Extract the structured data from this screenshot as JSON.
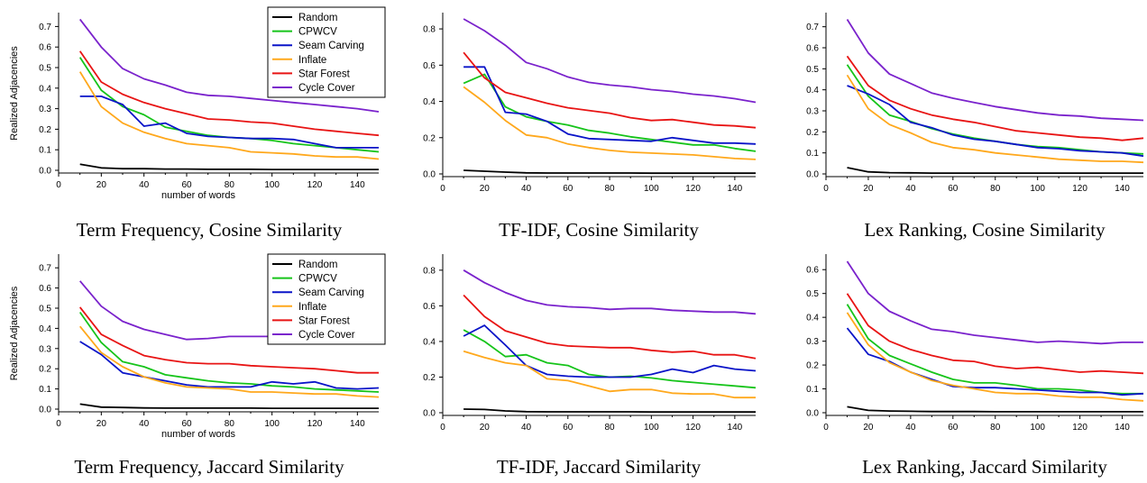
{
  "figure": {
    "series_colors": {
      "Random": "#000000",
      "CPWCV": "#16c41a",
      "Seam Carving": "#0a14c8",
      "Inflate": "#ffa81c",
      "Star Forest": "#e81414",
      "Cycle Cover": "#7a22cc"
    }
  },
  "chart_data": [
    {
      "type": "line",
      "caption": "Term Frequency, Cosine Similarity",
      "xlabel": "number of words",
      "ylabel": "Realized Adjacencies",
      "xlim": [
        0,
        150
      ],
      "ylim": [
        0,
        0.75
      ],
      "xticks": [
        0,
        20,
        40,
        60,
        80,
        100,
        120,
        140
      ],
      "yticks": [
        0.0,
        0.1,
        0.2,
        0.3,
        0.4,
        0.5,
        0.6,
        0.7
      ],
      "ytick_labels": [
        "0.0",
        "0.1",
        "0.2",
        "0.3",
        "0.4",
        "0.5",
        "0.6",
        "0.7"
      ],
      "legend": "top-right",
      "x": [
        10,
        20,
        30,
        40,
        50,
        60,
        70,
        80,
        90,
        100,
        110,
        120,
        130,
        140,
        150
      ],
      "series": [
        {
          "name": "Random",
          "values": [
            0.03,
            0.012,
            0.008,
            0.008,
            0.006,
            0.006,
            0.005,
            0.005,
            0.005,
            0.004,
            0.004,
            0.004,
            0.004,
            0.004,
            0.004
          ]
        },
        {
          "name": "CPWCV",
          "values": [
            0.55,
            0.39,
            0.31,
            0.27,
            0.21,
            0.19,
            0.17,
            0.16,
            0.155,
            0.145,
            0.13,
            0.12,
            0.11,
            0.1,
            0.09
          ]
        },
        {
          "name": "Seam Carving",
          "values": [
            0.36,
            0.36,
            0.32,
            0.215,
            0.23,
            0.18,
            0.165,
            0.16,
            0.155,
            0.155,
            0.15,
            0.13,
            0.11,
            0.11,
            0.11
          ]
        },
        {
          "name": "Inflate",
          "values": [
            0.48,
            0.31,
            0.23,
            0.185,
            0.155,
            0.13,
            0.12,
            0.11,
            0.09,
            0.085,
            0.08,
            0.07,
            0.065,
            0.065,
            0.055
          ]
        },
        {
          "name": "Star Forest",
          "values": [
            0.58,
            0.43,
            0.37,
            0.33,
            0.3,
            0.275,
            0.25,
            0.245,
            0.235,
            0.23,
            0.215,
            0.2,
            0.19,
            0.18,
            0.17
          ]
        },
        {
          "name": "Cycle Cover",
          "values": [
            0.735,
            0.6,
            0.495,
            0.445,
            0.415,
            0.38,
            0.365,
            0.36,
            0.35,
            0.34,
            0.33,
            0.32,
            0.31,
            0.3,
            0.285
          ]
        }
      ]
    },
    {
      "type": "line",
      "caption": "TF-IDF, Cosine Similarity",
      "xlabel": "",
      "ylabel": "",
      "xlim": [
        0,
        150
      ],
      "ylim": [
        0,
        0.87
      ],
      "xticks": [
        0,
        20,
        40,
        60,
        80,
        100,
        120,
        140
      ],
      "yticks": [
        0.0,
        0.2,
        0.4,
        0.6,
        0.8
      ],
      "ytick_labels": [
        "0.0",
        "0.2",
        "0.4",
        "0.6",
        "0.8"
      ],
      "x": [
        10,
        20,
        30,
        40,
        50,
        60,
        70,
        80,
        90,
        100,
        110,
        120,
        130,
        140,
        150
      ],
      "series": [
        {
          "name": "Random",
          "values": [
            0.02,
            0.015,
            0.01,
            0.006,
            0.005,
            0.005,
            0.005,
            0.005,
            0.005,
            0.004,
            0.004,
            0.004,
            0.004,
            0.004,
            0.004
          ]
        },
        {
          "name": "CPWCV",
          "values": [
            0.5,
            0.55,
            0.37,
            0.315,
            0.29,
            0.27,
            0.24,
            0.225,
            0.205,
            0.19,
            0.175,
            0.16,
            0.16,
            0.14,
            0.125
          ]
        },
        {
          "name": "Seam Carving",
          "values": [
            0.59,
            0.59,
            0.34,
            0.33,
            0.29,
            0.22,
            0.195,
            0.19,
            0.185,
            0.18,
            0.2,
            0.185,
            0.17,
            0.17,
            0.165
          ]
        },
        {
          "name": "Inflate",
          "values": [
            0.48,
            0.395,
            0.295,
            0.215,
            0.2,
            0.165,
            0.145,
            0.13,
            0.12,
            0.115,
            0.11,
            0.105,
            0.095,
            0.085,
            0.08
          ]
        },
        {
          "name": "Star Forest",
          "values": [
            0.67,
            0.53,
            0.45,
            0.42,
            0.39,
            0.365,
            0.35,
            0.335,
            0.31,
            0.295,
            0.3,
            0.285,
            0.27,
            0.265,
            0.255
          ]
        },
        {
          "name": "Cycle Cover",
          "values": [
            0.855,
            0.79,
            0.71,
            0.615,
            0.58,
            0.535,
            0.505,
            0.49,
            0.48,
            0.465,
            0.455,
            0.44,
            0.43,
            0.415,
            0.395
          ]
        }
      ]
    },
    {
      "type": "line",
      "caption": "Lex Ranking, Cosine Similarity",
      "xlabel": "",
      "ylabel": "",
      "xlim": [
        0,
        150
      ],
      "ylim": [
        0,
        0.75
      ],
      "xticks": [
        0,
        20,
        40,
        60,
        80,
        100,
        120,
        140
      ],
      "yticks": [
        0.0,
        0.1,
        0.2,
        0.3,
        0.4,
        0.5,
        0.6,
        0.7
      ],
      "ytick_labels": [
        "0.0",
        "0.1",
        "0.2",
        "0.3",
        "0.4",
        "0.5",
        "0.6",
        "0.7"
      ],
      "x": [
        10,
        20,
        30,
        40,
        50,
        60,
        70,
        80,
        90,
        100,
        110,
        120,
        130,
        140,
        150
      ],
      "series": [
        {
          "name": "Random",
          "values": [
            0.03,
            0.01,
            0.006,
            0.005,
            0.004,
            0.004,
            0.004,
            0.004,
            0.004,
            0.004,
            0.004,
            0.004,
            0.004,
            0.004,
            0.004
          ]
        },
        {
          "name": "CPWCV",
          "values": [
            0.52,
            0.37,
            0.28,
            0.25,
            0.215,
            0.19,
            0.17,
            0.155,
            0.14,
            0.13,
            0.125,
            0.115,
            0.105,
            0.1,
            0.095
          ]
        },
        {
          "name": "Seam Carving",
          "values": [
            0.42,
            0.38,
            0.33,
            0.245,
            0.22,
            0.185,
            0.165,
            0.155,
            0.14,
            0.125,
            0.12,
            0.11,
            0.105,
            0.1,
            0.085
          ]
        },
        {
          "name": "Inflate",
          "values": [
            0.47,
            0.31,
            0.235,
            0.195,
            0.15,
            0.125,
            0.115,
            0.1,
            0.09,
            0.08,
            0.07,
            0.065,
            0.06,
            0.06,
            0.055
          ]
        },
        {
          "name": "Star Forest",
          "values": [
            0.56,
            0.42,
            0.35,
            0.31,
            0.28,
            0.26,
            0.245,
            0.225,
            0.205,
            0.195,
            0.185,
            0.175,
            0.17,
            0.16,
            0.17
          ]
        },
        {
          "name": "Cycle Cover",
          "values": [
            0.735,
            0.575,
            0.475,
            0.43,
            0.385,
            0.36,
            0.34,
            0.32,
            0.305,
            0.29,
            0.28,
            0.275,
            0.265,
            0.26,
            0.255
          ]
        }
      ]
    },
    {
      "type": "line",
      "caption": "Term Frequency, Jaccard Similarity",
      "xlabel": "number of words",
      "ylabel": "Realized Adjacencies",
      "xlim": [
        0,
        150
      ],
      "ylim": [
        0,
        0.75
      ],
      "xticks": [
        0,
        20,
        40,
        60,
        80,
        100,
        120,
        140
      ],
      "yticks": [
        0.0,
        0.1,
        0.2,
        0.3,
        0.4,
        0.5,
        0.6,
        0.7
      ],
      "ytick_labels": [
        "0.0",
        "0.1",
        "0.2",
        "0.3",
        "0.4",
        "0.5",
        "0.6",
        "0.7"
      ],
      "legend": "top-right",
      "x": [
        10,
        20,
        30,
        40,
        50,
        60,
        70,
        80,
        90,
        100,
        110,
        120,
        130,
        140,
        150
      ],
      "series": [
        {
          "name": "Random",
          "values": [
            0.025,
            0.01,
            0.008,
            0.006,
            0.005,
            0.005,
            0.005,
            0.005,
            0.005,
            0.004,
            0.004,
            0.004,
            0.004,
            0.004,
            0.004
          ]
        },
        {
          "name": "CPWCV",
          "values": [
            0.48,
            0.33,
            0.235,
            0.21,
            0.17,
            0.155,
            0.14,
            0.13,
            0.125,
            0.115,
            0.11,
            0.1,
            0.095,
            0.09,
            0.085
          ]
        },
        {
          "name": "Seam Carving",
          "values": [
            0.335,
            0.27,
            0.18,
            0.16,
            0.14,
            0.12,
            0.11,
            0.11,
            0.11,
            0.135,
            0.125,
            0.135,
            0.105,
            0.1,
            0.105
          ]
        },
        {
          "name": "Inflate",
          "values": [
            0.41,
            0.28,
            0.21,
            0.16,
            0.13,
            0.11,
            0.105,
            0.1,
            0.085,
            0.085,
            0.08,
            0.075,
            0.075,
            0.065,
            0.06
          ]
        },
        {
          "name": "Star Forest",
          "values": [
            0.505,
            0.37,
            0.315,
            0.265,
            0.245,
            0.23,
            0.225,
            0.225,
            0.215,
            0.21,
            0.205,
            0.2,
            0.19,
            0.18,
            0.18
          ]
        },
        {
          "name": "Cycle Cover",
          "values": [
            0.635,
            0.51,
            0.435,
            0.395,
            0.37,
            0.345,
            0.35,
            0.36,
            0.36,
            0.36,
            0.355,
            0.345,
            0.34,
            0.335,
            0.325
          ]
        }
      ]
    },
    {
      "type": "line",
      "caption": "TF-IDF, Jaccard Similarity",
      "xlabel": "",
      "ylabel": "",
      "xlim": [
        0,
        150
      ],
      "ylim": [
        0,
        0.87
      ],
      "xticks": [
        0,
        20,
        40,
        60,
        80,
        100,
        120,
        140
      ],
      "yticks": [
        0.0,
        0.2,
        0.4,
        0.6,
        0.8
      ],
      "ytick_labels": [
        "0.0",
        "0.2",
        "0.4",
        "0.6",
        "0.8"
      ],
      "x": [
        10,
        20,
        30,
        40,
        50,
        60,
        70,
        80,
        90,
        100,
        110,
        120,
        130,
        140,
        150
      ],
      "series": [
        {
          "name": "Random",
          "values": [
            0.02,
            0.018,
            0.01,
            0.006,
            0.005,
            0.005,
            0.005,
            0.005,
            0.005,
            0.004,
            0.004,
            0.004,
            0.004,
            0.004,
            0.004
          ]
        },
        {
          "name": "CPWCV",
          "values": [
            0.465,
            0.4,
            0.315,
            0.325,
            0.28,
            0.265,
            0.215,
            0.2,
            0.205,
            0.195,
            0.18,
            0.17,
            0.16,
            0.15,
            0.14
          ]
        },
        {
          "name": "Seam Carving",
          "values": [
            0.43,
            0.49,
            0.38,
            0.265,
            0.215,
            0.205,
            0.2,
            0.2,
            0.2,
            0.215,
            0.245,
            0.225,
            0.265,
            0.245,
            0.235
          ]
        },
        {
          "name": "Inflate",
          "values": [
            0.345,
            0.31,
            0.28,
            0.265,
            0.19,
            0.18,
            0.15,
            0.12,
            0.13,
            0.13,
            0.11,
            0.105,
            0.105,
            0.085,
            0.085
          ]
        },
        {
          "name": "Star Forest",
          "values": [
            0.66,
            0.54,
            0.46,
            0.425,
            0.39,
            0.375,
            0.37,
            0.365,
            0.365,
            0.35,
            0.34,
            0.345,
            0.325,
            0.325,
            0.305
          ]
        },
        {
          "name": "Cycle Cover",
          "values": [
            0.8,
            0.73,
            0.675,
            0.63,
            0.605,
            0.595,
            0.59,
            0.58,
            0.585,
            0.585,
            0.575,
            0.57,
            0.565,
            0.565,
            0.555
          ]
        }
      ]
    },
    {
      "type": "line",
      "caption": "Lex Ranking, Jaccard Similarity",
      "xlabel": "",
      "ylabel": "",
      "xlim": [
        0,
        150
      ],
      "ylim": [
        0,
        0.65
      ],
      "xticks": [
        0,
        20,
        40,
        60,
        80,
        100,
        120,
        140
      ],
      "yticks": [
        0.0,
        0.1,
        0.2,
        0.3,
        0.4,
        0.5,
        0.6
      ],
      "ytick_labels": [
        "0.0",
        "0.1",
        "0.2",
        "0.3",
        "0.4",
        "0.5",
        "0.6"
      ],
      "x": [
        10,
        20,
        30,
        40,
        50,
        60,
        70,
        80,
        90,
        100,
        110,
        120,
        130,
        140,
        150
      ],
      "series": [
        {
          "name": "Random",
          "values": [
            0.025,
            0.01,
            0.007,
            0.006,
            0.005,
            0.005,
            0.005,
            0.004,
            0.004,
            0.004,
            0.004,
            0.004,
            0.004,
            0.004,
            0.004
          ]
        },
        {
          "name": "CPWCV",
          "values": [
            0.455,
            0.31,
            0.24,
            0.205,
            0.17,
            0.14,
            0.125,
            0.125,
            0.115,
            0.1,
            0.1,
            0.095,
            0.085,
            0.08,
            0.08
          ]
        },
        {
          "name": "Seam Carving",
          "values": [
            0.355,
            0.245,
            0.215,
            0.17,
            0.14,
            0.11,
            0.105,
            0.105,
            0.1,
            0.095,
            0.09,
            0.085,
            0.085,
            0.075,
            0.08
          ]
        },
        {
          "name": "Inflate",
          "values": [
            0.42,
            0.285,
            0.21,
            0.17,
            0.135,
            0.115,
            0.1,
            0.085,
            0.08,
            0.08,
            0.07,
            0.065,
            0.065,
            0.055,
            0.05
          ]
        },
        {
          "name": "Star Forest",
          "values": [
            0.5,
            0.365,
            0.3,
            0.265,
            0.24,
            0.22,
            0.215,
            0.195,
            0.185,
            0.19,
            0.18,
            0.17,
            0.175,
            0.17,
            0.165
          ]
        },
        {
          "name": "Cycle Cover",
          "values": [
            0.635,
            0.5,
            0.425,
            0.385,
            0.35,
            0.34,
            0.325,
            0.315,
            0.305,
            0.295,
            0.3,
            0.295,
            0.29,
            0.295,
            0.295
          ]
        }
      ]
    }
  ]
}
